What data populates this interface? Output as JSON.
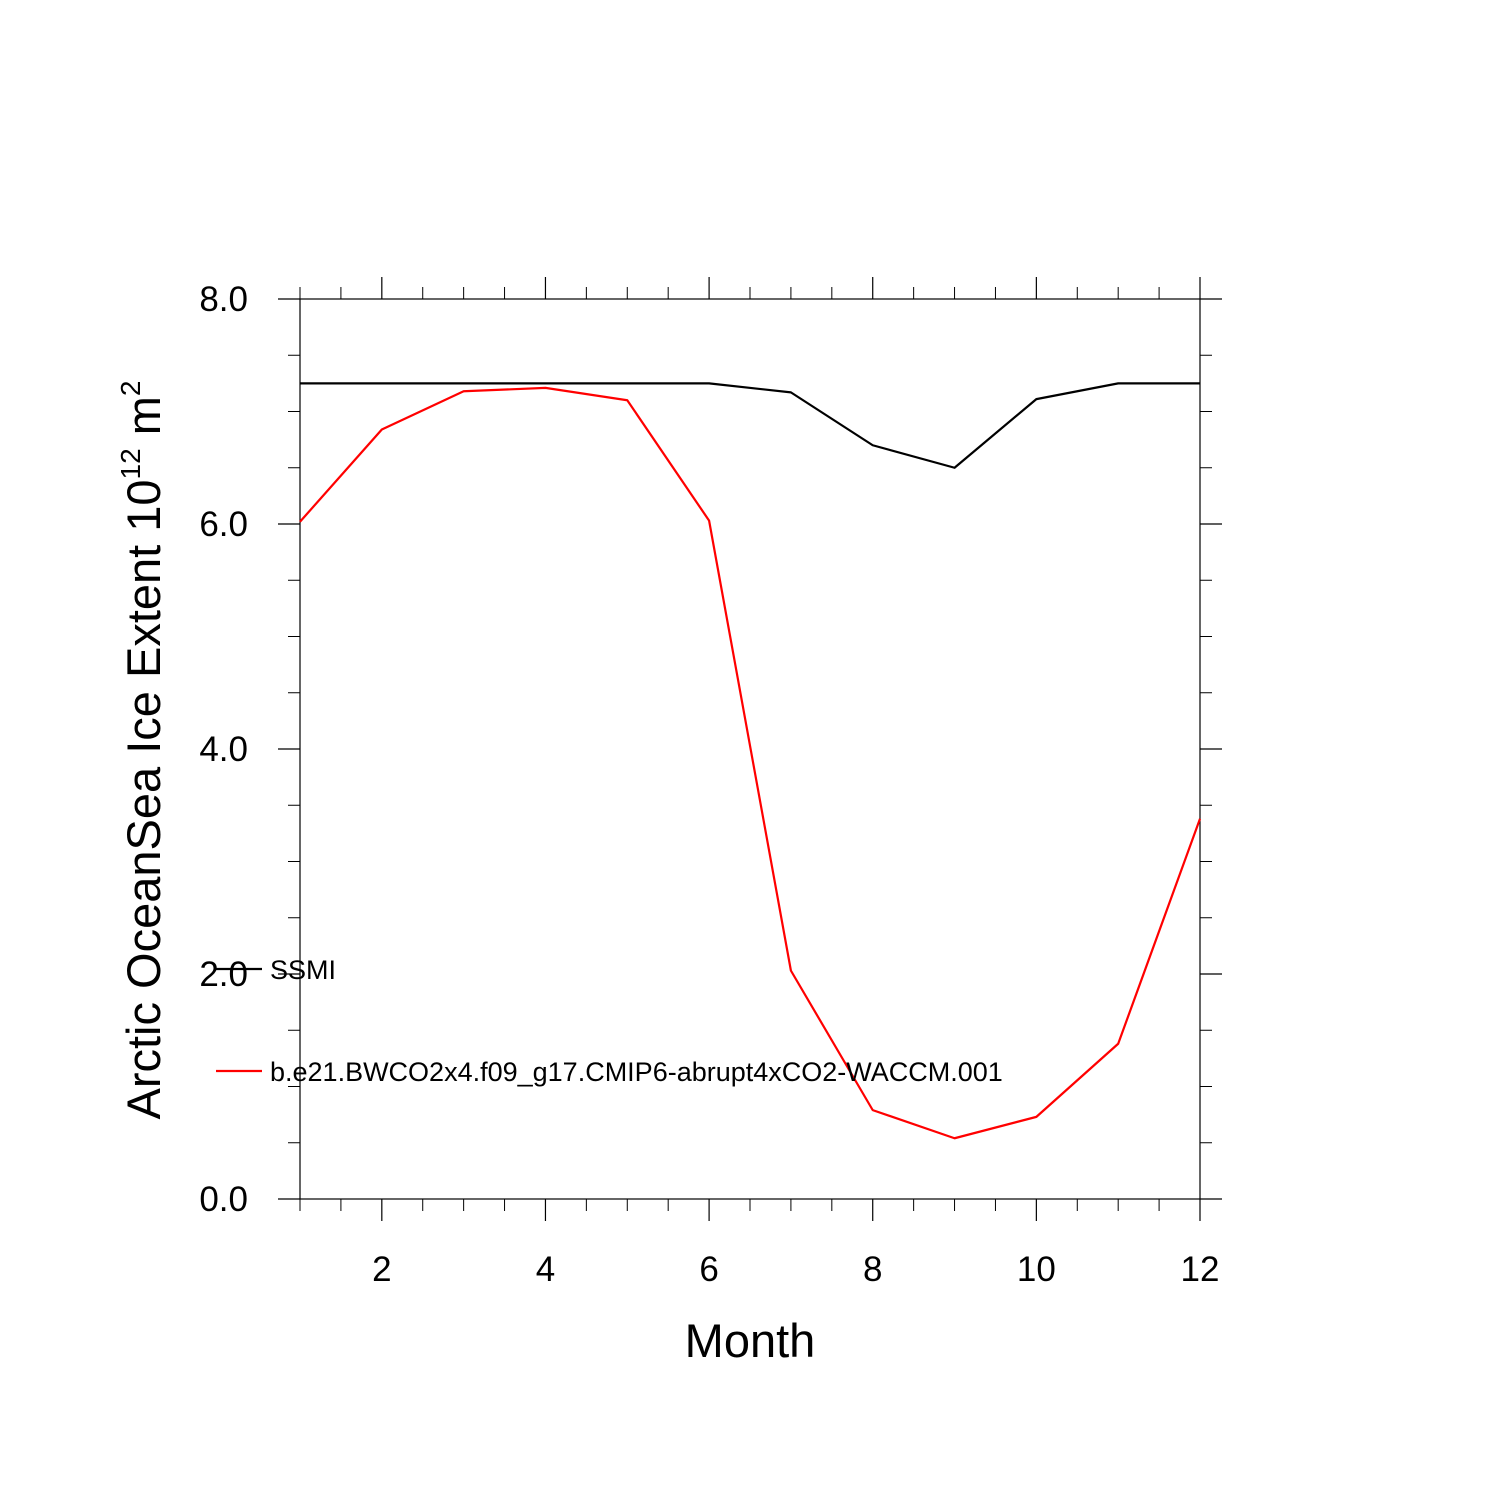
{
  "chart_data": {
    "type": "line",
    "title": "",
    "xlabel": "Month",
    "ylabel_main": "Arctic OceanSea Ice Extent 10",
    "ylabel_superscript1": "12",
    "ylabel_unit": " m",
    "ylabel_superscript2": "2",
    "xlim": [
      1,
      12
    ],
    "ylim": [
      0,
      8
    ],
    "x_ticks": [
      2,
      4,
      6,
      8,
      10,
      12
    ],
    "x_tick_labels": [
      "2",
      "4",
      "6",
      "8",
      "10",
      "12"
    ],
    "y_ticks": [
      0,
      2,
      4,
      6,
      8
    ],
    "y_tick_labels": [
      "0.0",
      "2.0",
      "4.0",
      "6.0",
      "8.0"
    ],
    "grid": false,
    "legend_position": "lower-left inside",
    "x": [
      1,
      2,
      3,
      4,
      5,
      6,
      7,
      8,
      9,
      10,
      11,
      12
    ],
    "series": [
      {
        "name": "SSMI",
        "color": "#000000",
        "values": [
          7.25,
          7.25,
          7.25,
          7.25,
          7.25,
          7.25,
          7.17,
          6.7,
          6.5,
          7.11,
          7.25,
          7.25
        ]
      },
      {
        "name": "b.e21.BWCO2x4.f09_g17.CMIP6-abrupt4xCO2-WACCM.001",
        "color": "#ff0000",
        "values": [
          6.02,
          6.84,
          7.18,
          7.21,
          7.1,
          6.03,
          2.03,
          0.79,
          0.54,
          0.73,
          1.38,
          3.38
        ]
      }
    ]
  }
}
